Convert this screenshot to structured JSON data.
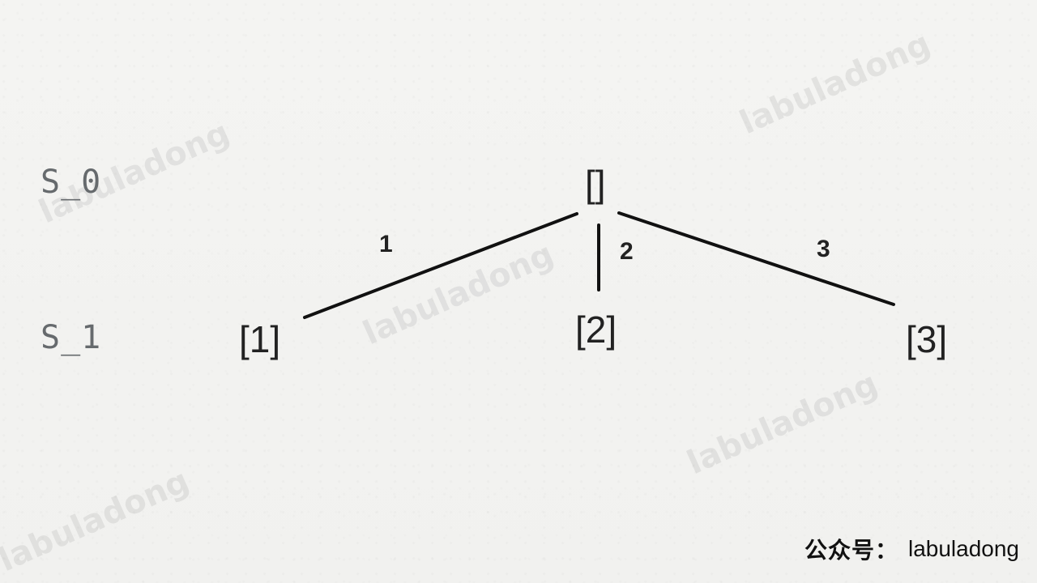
{
  "levels": [
    "S_0",
    "S_1"
  ],
  "nodes": {
    "root": "[]",
    "child1": "[1]",
    "child2": "[2]",
    "child3": "[3]"
  },
  "edges": {
    "edge1": "1",
    "edge2": "2",
    "edge3": "3"
  },
  "watermark": "labuladong",
  "footer": {
    "logo": "公众号：",
    "name": "labuladong"
  },
  "colors": {
    "background": "#f3f3f1",
    "label": "#666a6d",
    "ink": "#222222"
  }
}
